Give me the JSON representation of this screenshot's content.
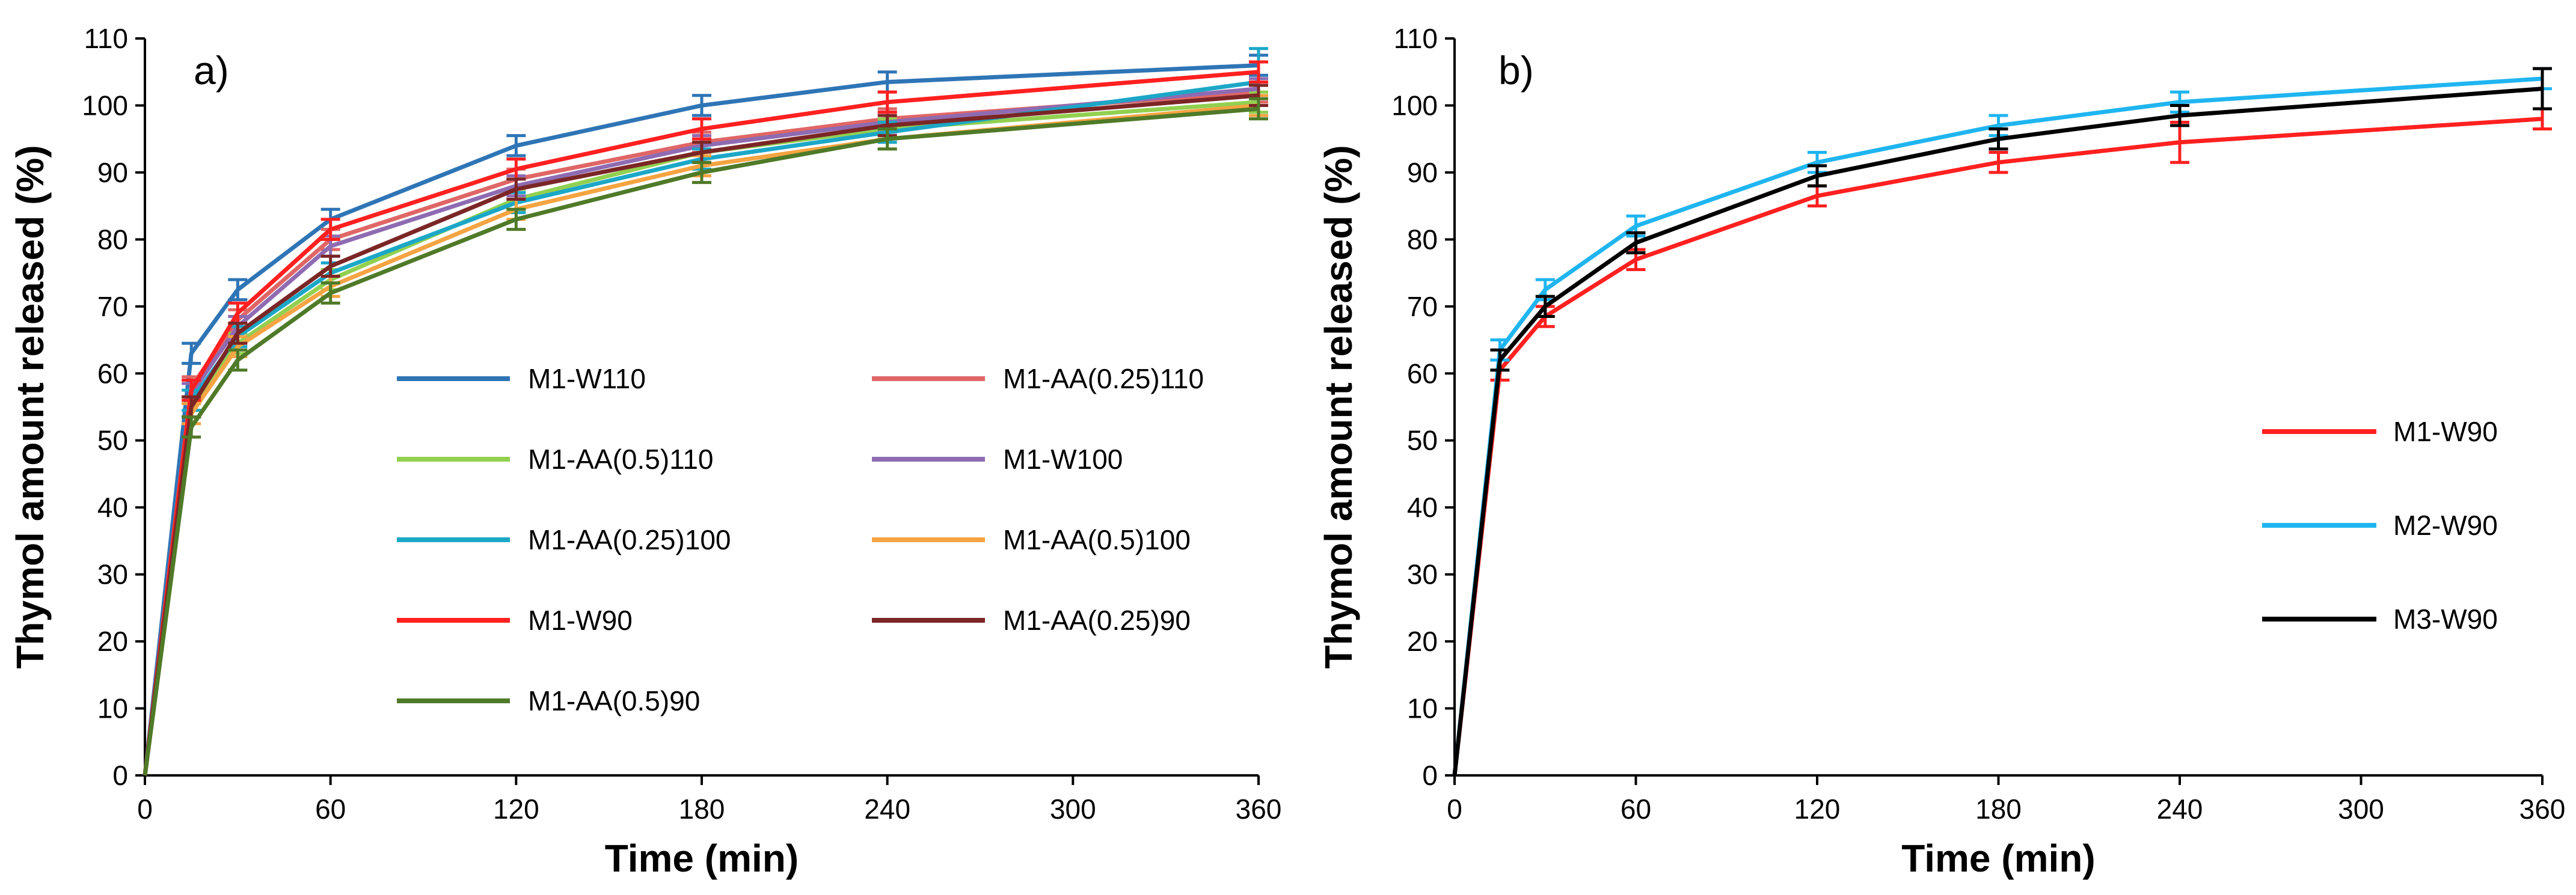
{
  "chart_data": [
    {
      "type": "line",
      "panel_label": "a)",
      "xlabel": "Time (min)",
      "ylabel": "Thymol amount released (%)",
      "xlim": [
        0,
        360
      ],
      "ylim": [
        0,
        110
      ],
      "xticks": [
        0,
        60,
        120,
        180,
        240,
        300,
        360
      ],
      "yticks": [
        0,
        10,
        20,
        30,
        40,
        50,
        60,
        70,
        80,
        90,
        100,
        110
      ],
      "grid": false,
      "error_bars": true,
      "legend_position": "center, two columns",
      "x": [
        0,
        15,
        30,
        60,
        120,
        180,
        240,
        360
      ],
      "series": [
        {
          "name": "M1-W110",
          "color": "#2E75B6",
          "values": [
            0,
            63,
            72.5,
            83,
            94,
            100,
            103.5,
            106
          ],
          "errors": [
            0,
            1.5,
            1.5,
            1.5,
            1.5,
            1.5,
            1.5,
            1.5
          ]
        },
        {
          "name": "M1-AA(0.25)110",
          "color": "#E06666",
          "values": [
            0,
            58,
            68,
            80,
            89,
            94.5,
            98,
            102
          ],
          "errors": [
            0,
            1.5,
            1.5,
            1.5,
            1.5,
            1.5,
            1.5,
            1.5
          ]
        },
        {
          "name": "M1-AA(0.5)110",
          "color": "#92D050",
          "values": [
            0,
            55,
            64.5,
            74,
            86,
            93,
            96.5,
            100.5
          ],
          "errors": [
            0,
            1.5,
            1.5,
            1.5,
            1.5,
            1.5,
            1.5,
            1.5
          ]
        },
        {
          "name": "M1-W100",
          "color": "#8E6BB2",
          "values": [
            0,
            57,
            67,
            79,
            88,
            94,
            97.5,
            102.5
          ],
          "errors": [
            0,
            1.5,
            1.5,
            1.5,
            1.5,
            1.5,
            1.5,
            1.5
          ]
        },
        {
          "name": "M1-AA(0.25)100",
          "color": "#1CA7C7",
          "values": [
            0,
            56,
            65.5,
            75,
            85.5,
            92,
            96,
            103.5
          ],
          "errors": [
            0,
            1.5,
            1.5,
            1.5,
            1.5,
            1.5,
            1.5,
            5
          ]
        },
        {
          "name": "M1-AA(0.5)100",
          "color": "#F4A442",
          "values": [
            0,
            54,
            64,
            73,
            84.5,
            91,
            95,
            100
          ],
          "errors": [
            0,
            1.5,
            1.5,
            1.5,
            1.5,
            1.5,
            1.5,
            1.5
          ]
        },
        {
          "name": "M1-W90",
          "color": "#FF2020",
          "values": [
            0,
            57.5,
            69,
            81.5,
            90.5,
            96.5,
            100.5,
            105
          ],
          "errors": [
            0,
            1.5,
            1.5,
            1.5,
            1.5,
            1.5,
            1.5,
            1.5
          ]
        },
        {
          "name": "M1-AA(0.25)90",
          "color": "#7B2626",
          "values": [
            0,
            55,
            66,
            76,
            87.5,
            93,
            97,
            101.5
          ],
          "errors": [
            0,
            1.5,
            1.5,
            1.5,
            1.5,
            1.5,
            1.5,
            1.5
          ]
        },
        {
          "name": "M1-AA(0.5)90",
          "color": "#4F7A28",
          "values": [
            0,
            52,
            62,
            72,
            83,
            90,
            95,
            99.5
          ],
          "errors": [
            0,
            1.5,
            1.5,
            1.5,
            1.5,
            1.5,
            1.5,
            1.5
          ]
        }
      ]
    },
    {
      "type": "line",
      "panel_label": "b)",
      "xlabel": "Time (min)",
      "ylabel": "Thymol amount released (%)",
      "xlim": [
        0,
        360
      ],
      "ylim": [
        0,
        110
      ],
      "xticks": [
        0,
        60,
        120,
        180,
        240,
        300,
        360
      ],
      "yticks": [
        0,
        10,
        20,
        30,
        40,
        50,
        60,
        70,
        80,
        90,
        100,
        110
      ],
      "grid": false,
      "error_bars": true,
      "legend_position": "right",
      "x": [
        0,
        15,
        30,
        60,
        120,
        180,
        240,
        360
      ],
      "series": [
        {
          "name": "M1-W90",
          "color": "#FF2020",
          "values": [
            0,
            60.5,
            68.5,
            77,
            86.5,
            91.5,
            94.5,
            98
          ],
          "errors": [
            0,
            1.5,
            1.5,
            1.5,
            1.5,
            1.5,
            3,
            1.5
          ]
        },
        {
          "name": "M2-W90",
          "color": "#1FB5F0",
          "values": [
            0,
            63.5,
            72.5,
            82,
            91.5,
            97,
            100.5,
            104
          ],
          "errors": [
            0,
            1.5,
            1.5,
            1.5,
            1.5,
            1.5,
            1.5,
            1.5
          ]
        },
        {
          "name": "M3-W90",
          "color": "#000000",
          "values": [
            0,
            62,
            70,
            79.5,
            89.5,
            95,
            98.5,
            102.5
          ],
          "errors": [
            0,
            1.5,
            1.5,
            1.5,
            1.5,
            1.5,
            1.5,
            3
          ]
        }
      ]
    }
  ]
}
